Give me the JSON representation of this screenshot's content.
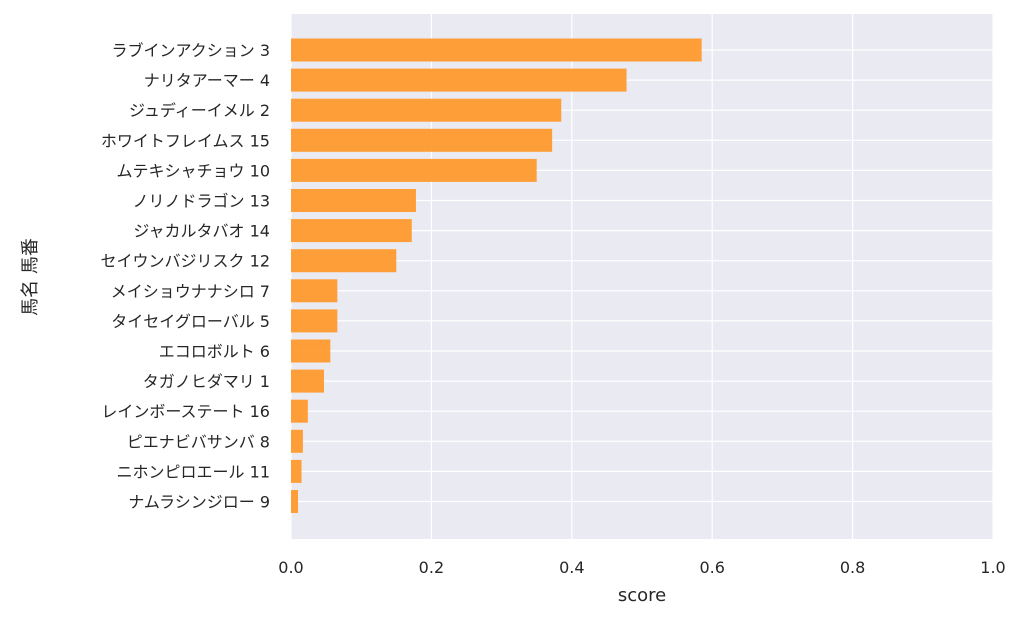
{
  "chart_data": {
    "type": "bar",
    "orientation": "horizontal",
    "title": "",
    "xlabel": "score",
    "ylabel": "馬名 馬番",
    "xlim": [
      0.0,
      1.0
    ],
    "xticks": [
      "0.0",
      "0.2",
      "0.4",
      "0.6",
      "0.8",
      "1.0"
    ],
    "grid": true,
    "bar_color": "#ff9a2e",
    "background_color": "#eaeaf2",
    "grid_color": "#ffffff",
    "categories": [
      "ラブインアクション 3",
      "ナリタアーマー 4",
      "ジュディーイメル 2",
      "ホワイトフレイムス 15",
      "ムテキシャチョウ 10",
      "ノリノドラゴン 13",
      "ジャカルタバオ 14",
      "セイウンバジリスク 12",
      "メイショウナナシロ 7",
      "タイセイグローバル 5",
      "エコロボルト 6",
      "タガノヒダマリ 1",
      "レインボーステート 16",
      "ピエナビバサンバ 8",
      "ニホンピロエール 11",
      "ナムラシンジロー 9"
    ],
    "values": [
      0.585,
      0.478,
      0.385,
      0.372,
      0.35,
      0.178,
      0.172,
      0.15,
      0.066,
      0.066,
      0.056,
      0.047,
      0.024,
      0.017,
      0.015,
      0.01
    ]
  }
}
